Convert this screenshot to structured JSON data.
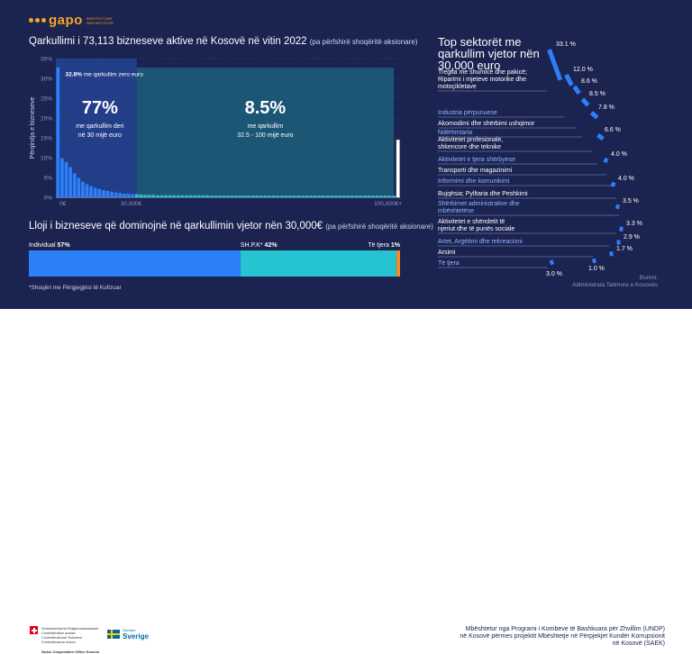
{
  "header": {
    "logo_word": "gapo",
    "logo_sub1": "INSTITUTI GAP",
    "logo_sub2": "GAP INSTITUTE"
  },
  "title_main": "Qarkullimi i 73,113 bizneseve aktive në Kosovë në vitin 2022",
  "title_main_note": "(pa përfshirë shoqëritë aksionare)",
  "title_types": "Lloji i bizneseve që dominojnë në qarkullimin vjetor nën 30,000€",
  "title_types_note": "(pa përfshirë shoqëritë aksionare)",
  "footnote": "*Shoqëri me Përgjegjësi të Kufizuar",
  "top_title": "Top sektorët me qarkullim vjetor nën 30,000 euro",
  "source": [
    "Burimi:",
    "Administrata Tatimore e Kosovës"
  ],
  "footer": {
    "swiss_lines": [
      "Schweizerische Eidgenossenschaft",
      "Confédération suisse",
      "Confederazione Svizzera",
      "Confederaziun svizra"
    ],
    "swiss_office": "Swiss Cooperation Office Kosovo",
    "sweden_small": "Sweden",
    "sweden_big": "Sverige",
    "support_text": "Mbështetur nga Programi i Kombeve të Bashkuara për Zhvillim (UNDP) në Kosovë përmes projektit Mbështetje në Përpjekjet Kundër Korrupsionit në Kosovë (SAEK)"
  },
  "colors": {
    "panel": "#1b2350",
    "blue": "#2d7ff9",
    "teal": "#26c4d0",
    "orange": "#f28a2e",
    "accent_light": "#8fb7ff"
  },
  "chart_data": [
    {
      "type": "bar",
      "title": "Qarkullimi i 73,113 bizneseve aktive në Kosovë në vitin 2022",
      "ylabel": "Përqindja e bizneseve",
      "ylim": [
        0,
        35
      ],
      "yticks": [
        "0%",
        "5%",
        "10%",
        "15%",
        "20%",
        "25%",
        "30%",
        "35%"
      ],
      "xtick_labels": [
        "0€",
        "30,000€",
        "100,000€+"
      ],
      "values": [
        9.8,
        8.9,
        7.6,
        6.0,
        4.9,
        3.9,
        3.3,
        2.8,
        2.4,
        2.1,
        1.8,
        1.6,
        1.4,
        1.2,
        1.1,
        0.9,
        0.9,
        0.8,
        0.8,
        0.7,
        0.6,
        0.6,
        0.6,
        0.5,
        0.5,
        0.5,
        0.5,
        0.5,
        0.5,
        0.5,
        0.5,
        0.5,
        0.5,
        0.5,
        0.5,
        0.5,
        0.4,
        0.4,
        0.4,
        0.4,
        0.4,
        0.4,
        0.4,
        0.4,
        0.4,
        0.4,
        0.4,
        0.4,
        0.4,
        0.4,
        0.4,
        0.4,
        0.4,
        0.4,
        0.4,
        0.4,
        0.4,
        0.4,
        0.4,
        0.4,
        0.4,
        0.4,
        0.4,
        0.4,
        0.4,
        0.4,
        0.4,
        0.4,
        0.4,
        0.4,
        0.4,
        0.4,
        0.4,
        0.4,
        0.4,
        0.4,
        0.4,
        0.4,
        0.4,
        0.4,
        0.4,
        14.5
      ],
      "zero_bar": {
        "value": 32.8,
        "label_value": "32.8%",
        "label_text": "me qarkullim zero euro"
      },
      "highlights": [
        {
          "big": "77%",
          "lines": [
            "me qarkullim deri",
            "në 30 mijë euro"
          ]
        },
        {
          "big": "8.5%",
          "lines": [
            "me qarkullim",
            "32.5 - 100 mijë euro"
          ]
        }
      ],
      "grid": true
    },
    {
      "type": "bar",
      "orientation": "horizontal-stacked",
      "series": [
        {
          "name": "Individual",
          "value": 57,
          "label": "57%"
        },
        {
          "name": "SH.P.K*",
          "value": 42,
          "label": "42%"
        },
        {
          "name": "Të tjera",
          "value": 1,
          "label": "1%"
        }
      ]
    },
    {
      "type": "bar",
      "title": "Top sektorët me qarkullim vjetor nën 30,000 euro",
      "categories": [
        "Tregtia me shumicë dhe pakicë; Riparimi i mjeteve motorike dhe motoçikletave",
        "Industria përpunuese",
        "Akomodimi dhe shërbimi ushqimor",
        "Ndërtimtaria",
        "Aktivitetet profesionale, shkencore dhe teknike",
        "Aktivitetet e tjera shërbyese",
        "Transporti dhe magazinimi",
        "Informimi dhe komunikimi",
        "Bujqësia; Pylltaria dhe Peshkimi",
        "Shërbimet administrative dhe mbështetëse",
        "Aktivitetet e shëndetit të njeriut dhe të punës sociale",
        "Artet, Argëtimi dhe rekreacioni",
        "Arsimi",
        "Të tjera"
      ],
      "values": [
        33.1,
        12.0,
        8.6,
        8.5,
        7.8,
        6.6,
        4.0,
        4.0,
        3.5,
        3.3,
        2.9,
        1.7,
        1.0,
        3.0
      ],
      "labels": [
        "33.1 %",
        "12.0 %",
        "8.6 %",
        "8.5 %",
        "7.8 %",
        "6.6 %",
        "4.0 %",
        "4.0 %",
        "3.5 %",
        "3.3 %",
        "2.9 %",
        "1.7 %",
        "1.0 %",
        "3.0 %"
      ],
      "highlighted_categories": [
        "Industria përpunuese",
        "Ndërtimtaria",
        "Aktivitetet e tjera shërbyese",
        "Informimi dhe komunikimi",
        "Shërbimet administrative dhe mbështetëse",
        "Artet, Argëtimi dhe rekreacioni",
        "Të tjera"
      ]
    }
  ]
}
